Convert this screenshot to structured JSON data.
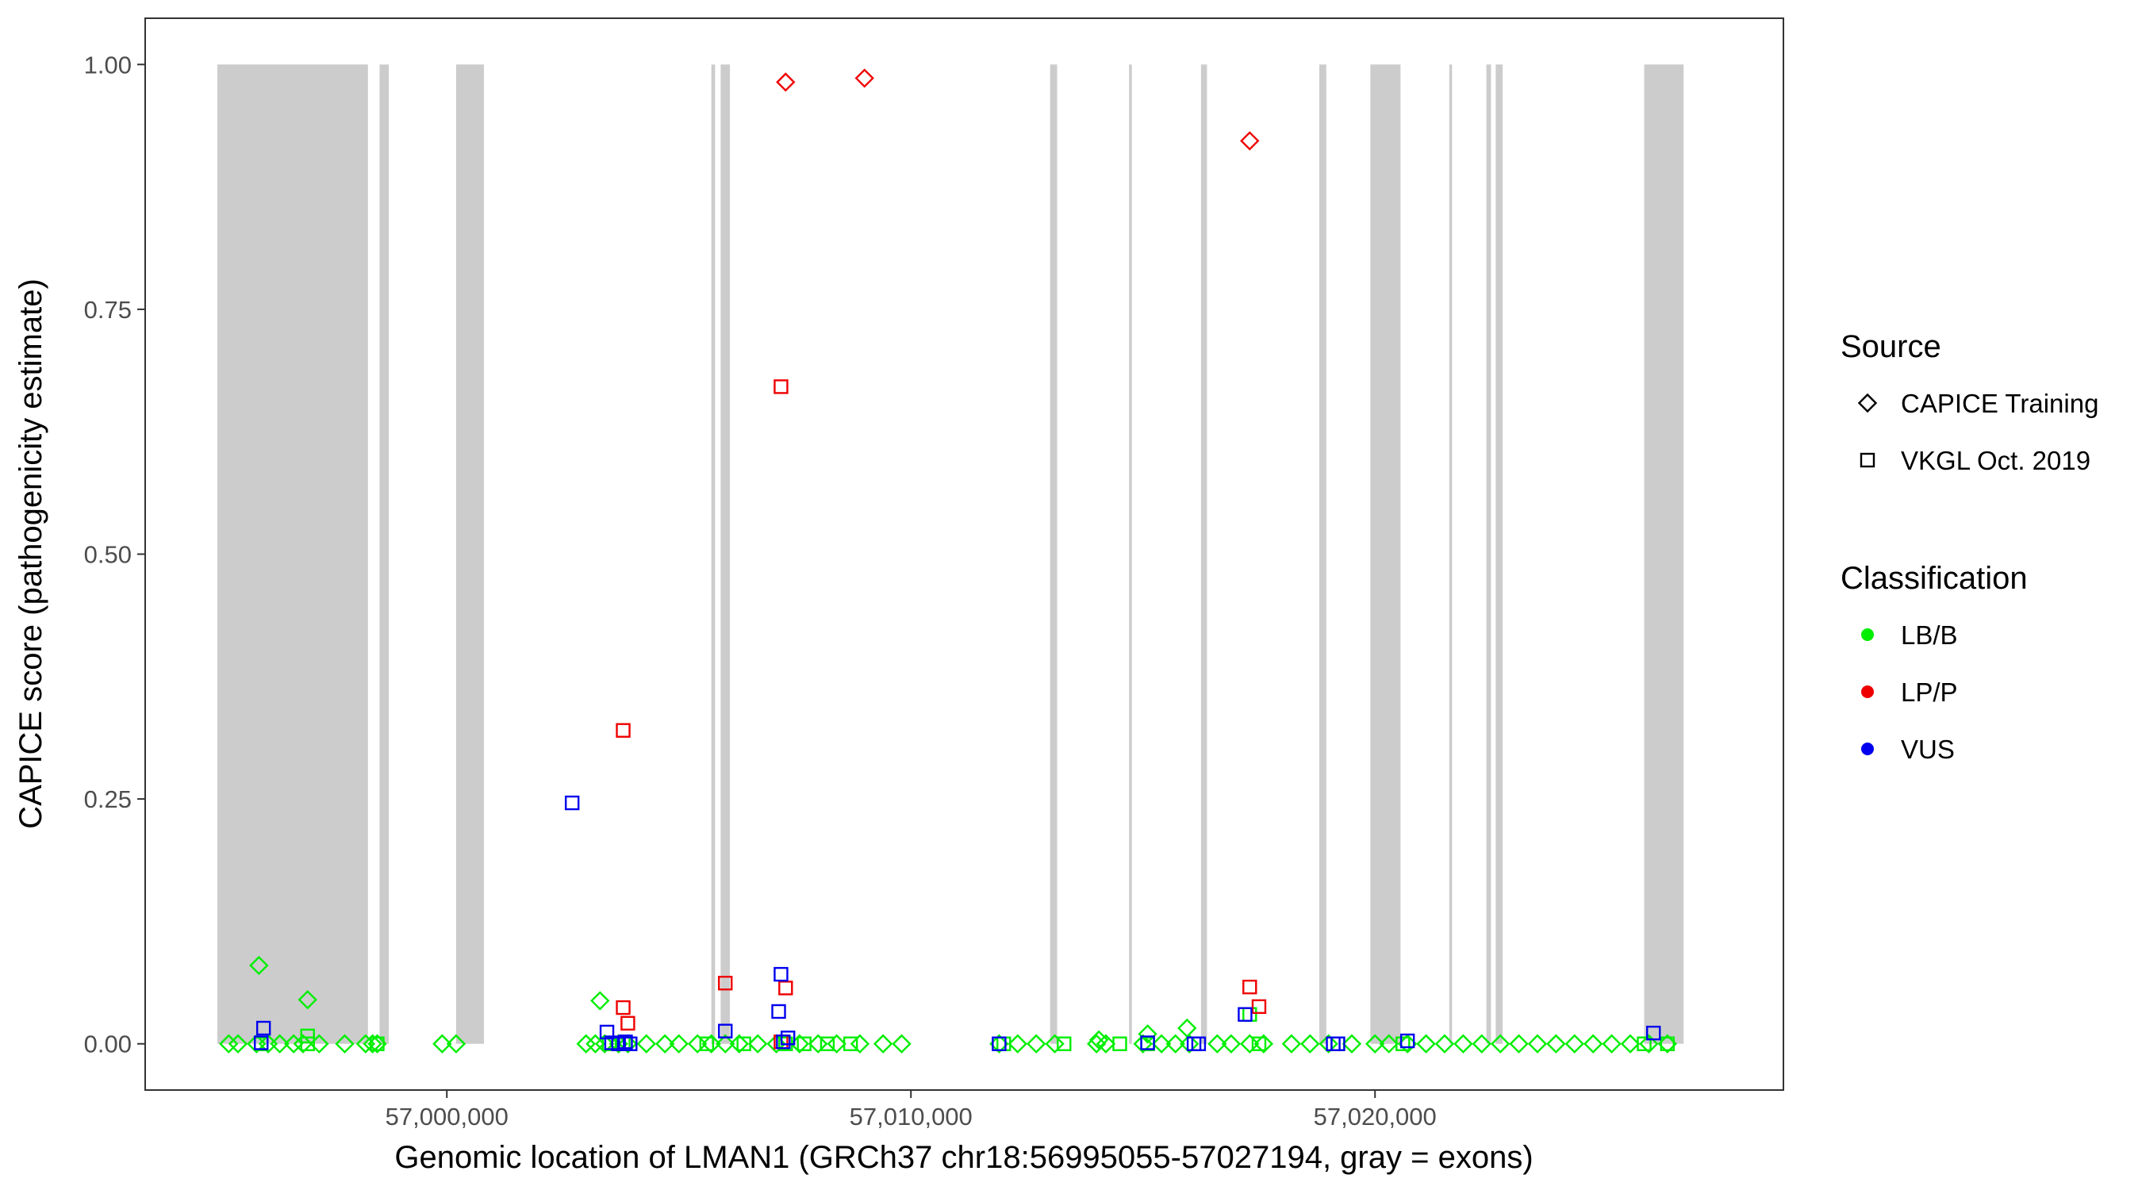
{
  "chart_data": {
    "type": "scatter",
    "title": "",
    "xlabel": "Genomic location of LMAN1 (GRCh37 chr18:56995055-57027194, gray = exons)",
    "ylabel": "CAPICE score (pathogenicity estimate)",
    "xlim": [
      56993500,
      57028800
    ],
    "ylim": [
      -0.0472,
      1.0472
    ],
    "x_ticks": [
      {
        "value": 57000000,
        "label": "57,000,000"
      },
      {
        "value": 57010000,
        "label": "57,010,000"
      },
      {
        "value": 57020000,
        "label": "57,020,000"
      }
    ],
    "y_ticks": [
      {
        "value": 0,
        "label": "0.00"
      },
      {
        "value": 0.25,
        "label": "0.25"
      },
      {
        "value": 0.5,
        "label": "0.50"
      },
      {
        "value": 0.75,
        "label": "0.75"
      },
      {
        "value": 1.0,
        "label": "1.00"
      }
    ],
    "grid": false,
    "exon_color": "#cccccc",
    "exons": [
      [
        56995055,
        56998300
      ],
      [
        56998550,
        56998750
      ],
      [
        57000200,
        57000800
      ],
      [
        57005700,
        57005780
      ],
      [
        57005900,
        57006100
      ],
      [
        57013000,
        57013150
      ],
      [
        57014700,
        57014760
      ],
      [
        57016250,
        57016380
      ],
      [
        57018800,
        57018950
      ],
      [
        57019900,
        57020550
      ],
      [
        57021600,
        57021660
      ],
      [
        57022400,
        57022500
      ],
      [
        57022600,
        57022750
      ],
      [
        57025800,
        57026650
      ]
    ],
    "legend": {
      "placement": "right",
      "source_title": "Source",
      "source_entries": [
        {
          "label": "CAPICE Training",
          "shape": "diamond"
        },
        {
          "label": "VKGL Oct. 2019",
          "shape": "square"
        }
      ],
      "class_title": "Classification",
      "class_entries": [
        {
          "label": "LB/B",
          "color": "#00ee00"
        },
        {
          "label": "LP/P",
          "color": "#ee0000"
        },
        {
          "label": "VUS",
          "color": "#0000ee"
        }
      ]
    },
    "series": [
      {
        "source": "CAPICE Training",
        "classification": "LB/B",
        "shape": "diamond",
        "color": "#00ee00",
        "x": [
          56995300,
          56995500,
          56995900,
          56996150,
          56996400,
          56996700,
          56996900,
          56997250,
          56997800,
          56998250,
          56999900,
          56995950,
          56997000,
          56998400,
          56998500,
          57000200,
          57003000,
          57003200,
          57003400,
          57003700,
          57003900,
          57004300,
          57004700,
          57005000,
          57005400,
          57005700,
          57006000,
          57006300,
          57003300,
          57006700,
          57007100,
          57007600,
          57008000,
          57008400,
          57008900,
          57009400,
          57009800,
          57011900,
          57012300,
          57012700,
          57013100,
          57014000,
          57014200,
          57015000,
          57015400,
          57015700,
          57016000,
          57014050,
          57015100,
          57015950,
          57016600,
          57016900,
          57017300,
          57017600,
          57018200,
          57018600,
          57019000,
          57019500,
          57020000,
          57020300,
          57020700,
          57021100,
          57021500,
          57021900,
          57022300,
          57022700,
          57023100,
          57023500,
          57023900,
          57024300,
          57024700,
          57025100,
          57025500,
          57025900,
          57026300
        ],
        "y": [
          0,
          0,
          0,
          0,
          0,
          0,
          0,
          0,
          0,
          0,
          0,
          0.08,
          0.045,
          0,
          0,
          0,
          0,
          0,
          0,
          0,
          0,
          0,
          0,
          0,
          0,
          0,
          0,
          0,
          0.044,
          0,
          0,
          0,
          0,
          0,
          0,
          0,
          0,
          0,
          0,
          0,
          0,
          0,
          0,
          0,
          0,
          0,
          0,
          0.004,
          0.01,
          0.016,
          0,
          0,
          0,
          0,
          0,
          0,
          0,
          0,
          0,
          0,
          0,
          0,
          0,
          0,
          0,
          0,
          0,
          0,
          0,
          0,
          0,
          0,
          0,
          0,
          0
        ]
      },
      {
        "source": "VKGL Oct. 2019",
        "classification": "LB/B",
        "shape": "square",
        "color": "#00ee00",
        "x": [
          56996000,
          56997000,
          56997000,
          56998500,
          57003500,
          57003800,
          57005600,
          57006400,
          57007300,
          57007700,
          57008200,
          57008700,
          57012000,
          57013300,
          57014500,
          57015100,
          57017300,
          57017500,
          57019200,
          57020600,
          57025800,
          57026300
        ],
        "y": [
          0,
          0.008,
          0,
          0,
          0,
          0,
          0,
          0,
          0,
          0,
          0,
          0,
          0,
          0,
          0,
          0,
          0.03,
          0,
          0,
          0,
          0,
          0
        ]
      },
      {
        "source": "CAPICE Training",
        "classification": "LP/P",
        "shape": "diamond",
        "color": "#ee0000",
        "x": [
          57007300,
          57009000,
          57017300
        ],
        "y": [
          0.982,
          0.986,
          0.922
        ]
      },
      {
        "source": "VKGL Oct. 2019",
        "classification": "LP/P",
        "shape": "square",
        "color": "#ee0000",
        "x": [
          57007200,
          57003800,
          57003800,
          57003900,
          57006000,
          57007300,
          57007200,
          57017300,
          57017500
        ],
        "y": [
          0.671,
          0.32,
          0.037,
          0.021,
          0.062,
          0.057,
          0.002,
          0.058,
          0.038
        ]
      },
      {
        "source": "VKGL Oct. 2019",
        "classification": "VUS",
        "shape": "square",
        "color": "#0000ee",
        "x": [
          57002700,
          56996050,
          56996000,
          57003450,
          57003550,
          57003700,
          57003850,
          57003950,
          57006000,
          57007200,
          57007150,
          57007250,
          57007350,
          57011900,
          57015100,
          57016100,
          57016200,
          57017200,
          57019100,
          57019200,
          57020700,
          57026000
        ],
        "y": [
          0.246,
          0.016,
          0.001,
          0.012,
          0.001,
          0,
          0.002,
          0,
          0.013,
          0.071,
          0.033,
          0.002,
          0.006,
          0,
          0.001,
          0,
          0,
          0.03,
          0,
          0,
          0.003,
          0.011
        ]
      }
    ]
  }
}
